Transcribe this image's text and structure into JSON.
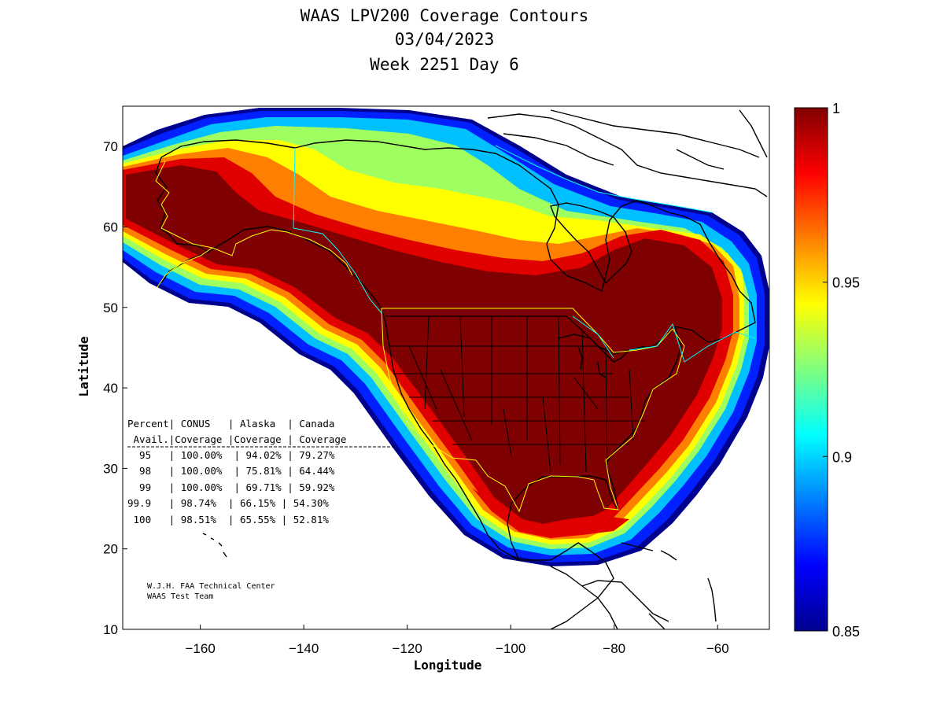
{
  "header": {
    "title": "WAAS LPV200 Coverage Contours",
    "date": "03/04/2023",
    "week_day": "Week 2251 Day 6"
  },
  "axes": {
    "xlabel": "Longitude",
    "ylabel": "Latitude",
    "xlim": [
      -175,
      -50
    ],
    "ylim": [
      10,
      75
    ],
    "xticks": [
      -160,
      -140,
      -120,
      -100,
      -80,
      -60
    ],
    "yticks": [
      10,
      20,
      30,
      40,
      50,
      60,
      70
    ]
  },
  "colorbar": {
    "min": 0.85,
    "max": 1,
    "ticks": [
      "1",
      "0.95",
      "0.9",
      "0.85"
    ],
    "colormap": "jet"
  },
  "coverage_table": {
    "header1": "Percent| CONUS   | Alaska  | Canada",
    "header2": " Avail.|Coverage |Coverage | Coverage",
    "rows": [
      "  95   | 100.00%  | 94.02% | 79.27%",
      "  98   | 100.00%  | 75.81% | 64.44%",
      "  99   | 100.00%  | 69.71% | 59.92%",
      "99.9   | 98.74%  | 66.15% | 54.30%",
      " 100   | 98.51%  | 65.55% | 52.81%"
    ]
  },
  "credit": {
    "line1": "W.J.H. FAA Technical Center",
    "line2": "WAAS Test Team"
  },
  "colors": {
    "deep_red": "#7f0000",
    "red": "#e00000",
    "orange": "#ff8000",
    "yellow": "#ffff00",
    "green": "#a0ff60",
    "cyan": "#00c0ff",
    "blue": "#0000ff",
    "navy": "#00008f",
    "region_outline": "#ffff00",
    "canada_border": "#00ffff"
  }
}
